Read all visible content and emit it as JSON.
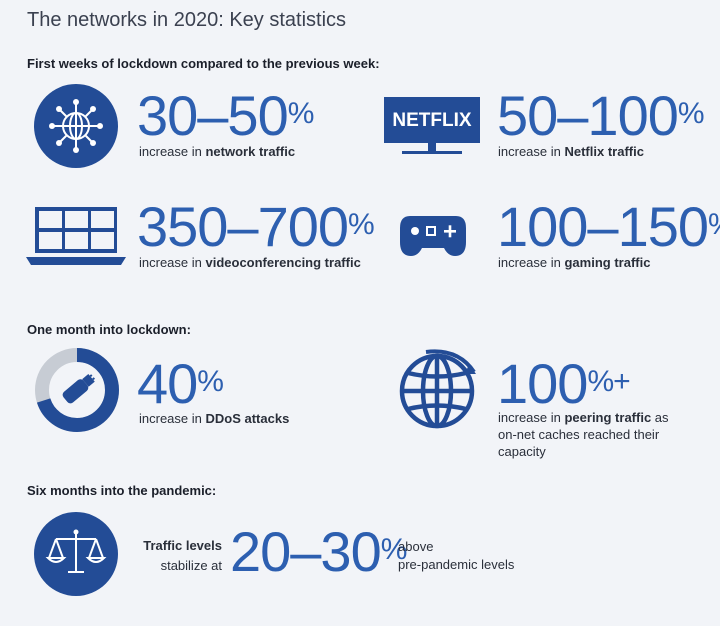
{
  "title": "The networks in 2020: Key statistics",
  "sections": [
    {
      "heading": "First weeks of lockdown compared to the previous week:"
    },
    {
      "heading": "One month into lockdown:"
    },
    {
      "heading": "Six months into the pandemic:"
    }
  ],
  "stats": {
    "network": {
      "value": "30–50",
      "unit": "%",
      "prefix": "increase in ",
      "bold": "network traffic"
    },
    "netflix": {
      "logo": "NETFLIX",
      "value": "50–100",
      "unit": "%",
      "prefix": "increase in ",
      "bold": "Netflix traffic"
    },
    "video": {
      "value": "350–700",
      "unit": "%",
      "prefix": "increase in ",
      "bold": "videoconferencing traffic"
    },
    "gaming": {
      "value": "100–150",
      "unit": "%",
      "prefix": "increase in ",
      "bold": "gaming traffic"
    },
    "ddos": {
      "value": "40",
      "unit": "%",
      "prefix": "increase in ",
      "bold": "DDoS attacks",
      "ring_fraction": 0.7
    },
    "peering": {
      "value": "100",
      "unit": "%+",
      "prefix": "increase in ",
      "bold": "peering traffic",
      "suffix_line1": " as",
      "line2": "on-net caches reached their",
      "line3": "capacity"
    },
    "traffic": {
      "bold": "Traffic levels",
      "line2": "stabilize at",
      "value": "20–30",
      "unit": "%",
      "after1": "above",
      "after2": "pre-pandemic levels"
    }
  },
  "icons": {
    "network": "network-globe-icon",
    "netflix": "netflix-tv-icon",
    "video": "laptop-video-grid-icon",
    "gaming": "gamepad-icon",
    "ddos": "ddos-gauge-icon",
    "peering": "globe-icon",
    "traffic": "scales-icon"
  },
  "colors": {
    "accent": "#2d5fb0",
    "icon": "#234c96",
    "ring_light": "#c7ccd4"
  }
}
